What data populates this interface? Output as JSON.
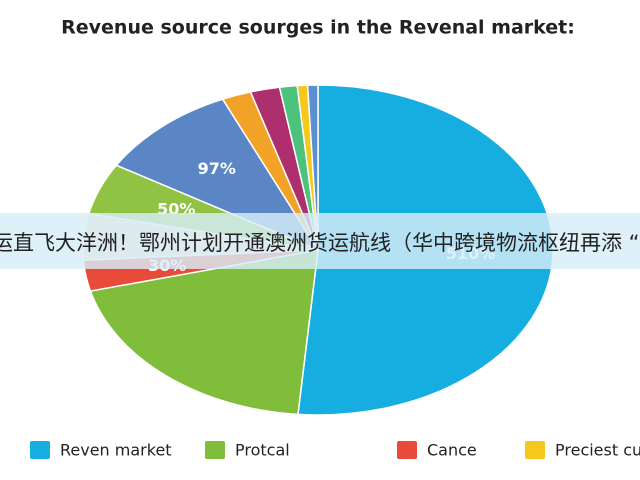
{
  "chart_data": {
    "type": "pie",
    "title": "Revenue source sourges in the Revenal market:",
    "categories": [
      "Reven market",
      "Protcal",
      "Cance",
      null,
      null,
      null,
      null,
      null,
      null,
      "Preciest curcet",
      null
    ],
    "values": [
      510,
      195,
      30,
      45,
      50,
      97,
      20,
      20,
      12,
      7,
      7
    ],
    "value_labels": [
      "510%",
      null,
      "30%",
      null,
      "50%",
      "97%",
      null,
      null,
      null,
      null,
      null
    ],
    "colors": [
      "#16aee0",
      "#7fbd3b",
      "#e84b3a",
      "#fbdcc4",
      "#90c244",
      "#5a86c5",
      "#f3a228",
      "#ae2f6e",
      "#4cc27d",
      "#f6c81c",
      "#5d8ed0"
    ]
  },
  "overlay": {
    "text": "运直飞大洋洲！鄂州计划开通澳洲货运航线（华中跨境物流枢纽再添 “新"
  }
}
